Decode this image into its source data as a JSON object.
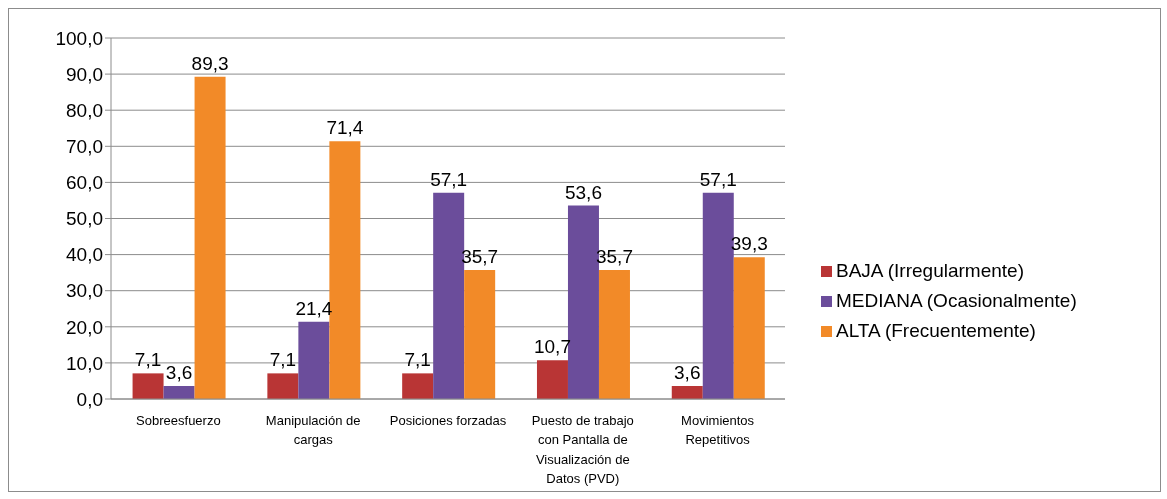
{
  "chart_data": {
    "type": "bar",
    "categories": [
      "Sobreesfuerzo",
      "Manipulación de cargas",
      "Posiciones forzadas",
      "Puesto de trabajo con Pantalla de Visualización de Datos (PVD)",
      "Movimientos Repetitivos"
    ],
    "series": [
      {
        "name": "BAJA (Irregularmente)",
        "color": "#b93535",
        "values": [
          7.1,
          7.1,
          7.1,
          10.7,
          3.6
        ],
        "value_labels": [
          "7,1",
          "7,1",
          "7,1",
          "10,7",
          "3,6"
        ]
      },
      {
        "name": "MEDIANA (Ocasionalmente)",
        "color": "#6b4d9b",
        "values": [
          3.6,
          21.4,
          57.1,
          53.6,
          57.1
        ],
        "value_labels": [
          "3,6",
          "21,4",
          "57,1",
          "53,6",
          "57,1"
        ]
      },
      {
        "name": "ALTA (Frecuentemente)",
        "color": "#f28a28",
        "values": [
          89.3,
          71.4,
          35.7,
          35.7,
          39.3
        ],
        "value_labels": [
          "89,3",
          "71,4",
          "35,7",
          "35,7",
          "39,3"
        ]
      }
    ],
    "ylim": [
      0,
      100
    ],
    "yticks": [
      {
        "value": 0,
        "label": "0,0"
      },
      {
        "value": 10,
        "label": "10,0"
      },
      {
        "value": 20,
        "label": "20,0"
      },
      {
        "value": 30,
        "label": "30,0"
      },
      {
        "value": 40,
        "label": "40,0"
      },
      {
        "value": 50,
        "label": "50,0"
      },
      {
        "value": 60,
        "label": "60,0"
      },
      {
        "value": 70,
        "label": "70,0"
      },
      {
        "value": 80,
        "label": "80,0"
      },
      {
        "value": 90,
        "label": "90,0"
      },
      {
        "value": 100,
        "label": "100,0"
      }
    ],
    "grid": "y",
    "legend": "right"
  }
}
